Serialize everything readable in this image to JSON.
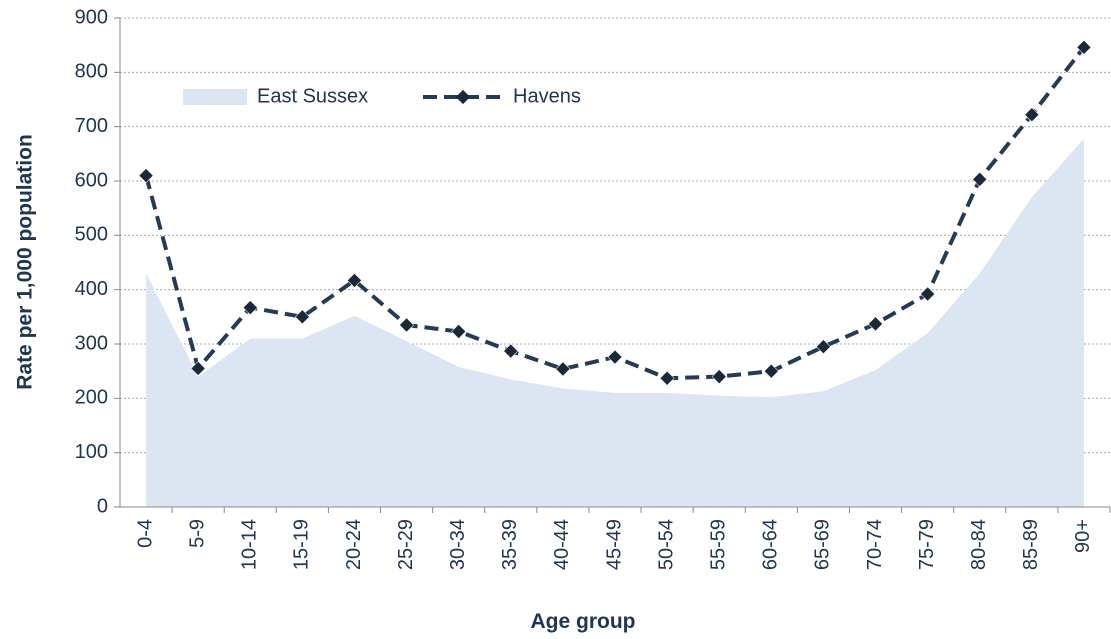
{
  "chart_data": {
    "type": "line",
    "x_label": "Age group",
    "y_label": "Rate per 1,000 population",
    "categories": [
      "0-4",
      "5-9",
      "10-14",
      "15-19",
      "20-24",
      "25-29",
      "30-34",
      "35-39",
      "40-44",
      "45-49",
      "50-54",
      "55-59",
      "60-64",
      "65-69",
      "70-74",
      "75-79",
      "80-84",
      "85-89",
      "90+"
    ],
    "series": [
      {
        "name": "East Sussex",
        "kind": "area",
        "color": "#dce6f2",
        "values": [
          430,
          240,
          310,
          310,
          352,
          305,
          258,
          235,
          218,
          210,
          210,
          205,
          202,
          213,
          252,
          320,
          430,
          570,
          678
        ]
      },
      {
        "name": "Havens",
        "kind": "line",
        "color": "#243b55",
        "marker_color": "#1a2838",
        "values": [
          610,
          255,
          367,
          350,
          417,
          335,
          323,
          287,
          254,
          276,
          237,
          240,
          250,
          295,
          337,
          392,
          603,
          722,
          846
        ]
      }
    ],
    "ylim": [
      0,
      900
    ],
    "yticks": [
      0,
      100,
      200,
      300,
      400,
      500,
      600,
      700,
      800,
      900
    ],
    "grid": true,
    "legend": "upper left"
  }
}
